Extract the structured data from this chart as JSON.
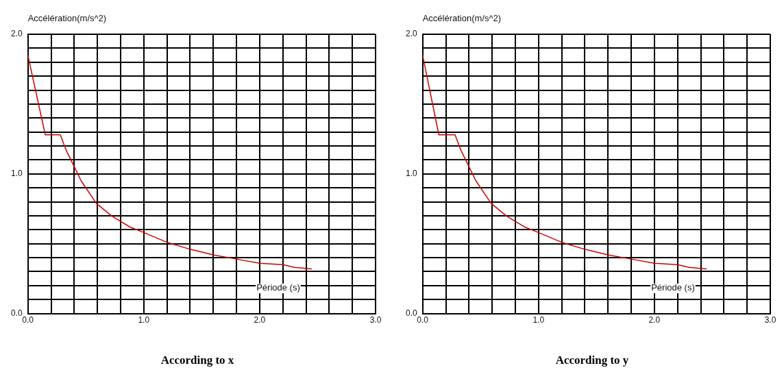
{
  "chart_data": [
    {
      "type": "line",
      "title": "According to x",
      "ylabel": "Accélération(m/s^2)",
      "xlabel": "Période (s)",
      "grid": true,
      "legend": false,
      "marker": "none",
      "line_style": "solid",
      "xlim": [
        0,
        3
      ],
      "ylim": [
        0,
        2
      ],
      "xticks": [
        {
          "value": 0,
          "label": "0.0"
        },
        {
          "value": 0.2,
          "label": null
        },
        {
          "value": 0.4,
          "label": null
        },
        {
          "value": 0.6,
          "label": null
        },
        {
          "value": 0.8,
          "label": null
        },
        {
          "value": 1,
          "label": "1.0"
        },
        {
          "value": 1.2,
          "label": null
        },
        {
          "value": 1.4,
          "label": null
        },
        {
          "value": 1.6,
          "label": null
        },
        {
          "value": 1.8,
          "label": null
        },
        {
          "value": 2,
          "label": "2.0"
        },
        {
          "value": 2.2,
          "label": null
        },
        {
          "value": 2.4,
          "label": null
        },
        {
          "value": 2.6,
          "label": null
        },
        {
          "value": 2.8,
          "label": null
        },
        {
          "value": 3,
          "label": "3.0"
        }
      ],
      "yticks": [
        {
          "value": 0,
          "label": "0.0"
        },
        {
          "value": 0.1,
          "label": null
        },
        {
          "value": 0.2,
          "label": null
        },
        {
          "value": 0.3,
          "label": null
        },
        {
          "value": 0.4,
          "label": null
        },
        {
          "value": 0.5,
          "label": null
        },
        {
          "value": 0.6,
          "label": null
        },
        {
          "value": 0.7,
          "label": null
        },
        {
          "value": 0.8,
          "label": null
        },
        {
          "value": 0.9,
          "label": null
        },
        {
          "value": 1,
          "label": "1.0"
        },
        {
          "value": 1.1,
          "label": null
        },
        {
          "value": 1.2,
          "label": null
        },
        {
          "value": 1.3,
          "label": null
        },
        {
          "value": 1.4,
          "label": null
        },
        {
          "value": 1.5,
          "label": null
        },
        {
          "value": 1.6,
          "label": null
        },
        {
          "value": 1.7,
          "label": null
        },
        {
          "value": 1.8,
          "label": null
        },
        {
          "value": 1.9,
          "label": null
        },
        {
          "value": 2,
          "label": "2.0"
        }
      ],
      "series": [
        {
          "color": "#cc0000",
          "x": [
            0,
            0.15,
            0.28,
            0.33,
            0.46,
            0.59,
            0.72,
            0.88,
            1.0,
            1.2,
            1.4,
            1.6,
            1.8,
            2.0,
            2.2,
            2.3,
            2.45
          ],
          "values": [
            1.85,
            1.28,
            1.28,
            1.17,
            0.95,
            0.79,
            0.7,
            0.62,
            0.58,
            0.51,
            0.46,
            0.42,
            0.39,
            0.36,
            0.35,
            0.33,
            0.32
          ]
        }
      ]
    },
    {
      "type": "line",
      "title": "According to y",
      "ylabel": "Accélération(m/s^2)",
      "xlabel": "Période (s)",
      "grid": true,
      "legend": false,
      "marker": "none",
      "line_style": "solid",
      "xlim": [
        0,
        3
      ],
      "ylim": [
        0,
        2
      ],
      "xticks": [
        {
          "value": 0,
          "label": "0.0"
        },
        {
          "value": 0.2,
          "label": null
        },
        {
          "value": 0.4,
          "label": null
        },
        {
          "value": 0.6,
          "label": null
        },
        {
          "value": 0.8,
          "label": null
        },
        {
          "value": 1,
          "label": "1.0"
        },
        {
          "value": 1.2,
          "label": null
        },
        {
          "value": 1.4,
          "label": null
        },
        {
          "value": 1.6,
          "label": null
        },
        {
          "value": 1.8,
          "label": null
        },
        {
          "value": 2,
          "label": "2.0"
        },
        {
          "value": 2.2,
          "label": null
        },
        {
          "value": 2.4,
          "label": null
        },
        {
          "value": 2.6,
          "label": null
        },
        {
          "value": 2.8,
          "label": null
        },
        {
          "value": 3,
          "label": "3.0"
        }
      ],
      "yticks": [
        {
          "value": 0,
          "label": "0.0"
        },
        {
          "value": 0.1,
          "label": null
        },
        {
          "value": 0.2,
          "label": null
        },
        {
          "value": 0.3,
          "label": null
        },
        {
          "value": 0.4,
          "label": null
        },
        {
          "value": 0.5,
          "label": null
        },
        {
          "value": 0.6,
          "label": null
        },
        {
          "value": 0.7,
          "label": null
        },
        {
          "value": 0.8,
          "label": null
        },
        {
          "value": 0.9,
          "label": null
        },
        {
          "value": 1,
          "label": "1.0"
        },
        {
          "value": 1.1,
          "label": null
        },
        {
          "value": 1.2,
          "label": null
        },
        {
          "value": 1.3,
          "label": null
        },
        {
          "value": 1.4,
          "label": null
        },
        {
          "value": 1.5,
          "label": null
        },
        {
          "value": 1.6,
          "label": null
        },
        {
          "value": 1.7,
          "label": null
        },
        {
          "value": 1.8,
          "label": null
        },
        {
          "value": 1.9,
          "label": null
        },
        {
          "value": 2,
          "label": "2.0"
        }
      ],
      "series": [
        {
          "color": "#cc0000",
          "x": [
            0,
            0.14,
            0.28,
            0.33,
            0.46,
            0.59,
            0.72,
            0.88,
            1.0,
            1.2,
            1.4,
            1.6,
            1.8,
            2.0,
            2.2,
            2.3,
            2.45
          ],
          "values": [
            1.85,
            1.28,
            1.28,
            1.17,
            0.95,
            0.79,
            0.7,
            0.62,
            0.58,
            0.51,
            0.46,
            0.42,
            0.39,
            0.36,
            0.35,
            0.33,
            0.32
          ]
        }
      ]
    }
  ]
}
